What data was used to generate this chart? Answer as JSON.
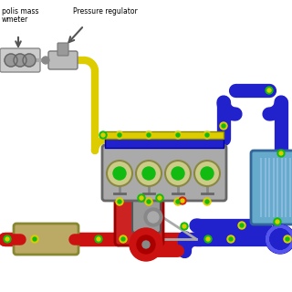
{
  "bg_color": "#ffffff",
  "sensor_green": "#11bb11",
  "sensor_yellow": "#ddcc00",
  "sensor_red": "#dd2200",
  "pipe_blue": "#2222cc",
  "pipe_yellow": "#ddcc00",
  "pipe_red": "#cc1111",
  "engine_gray": "#aaaaaa",
  "intercooler_blue": "#66aacc",
  "exhaust_tan": "#bbaa66",
  "label_flowmeter": "polis mass\nwmeter",
  "label_pressure": "Pressure regulator",
  "cyl_fill": "#cccc88",
  "cyl_border": "#888844"
}
